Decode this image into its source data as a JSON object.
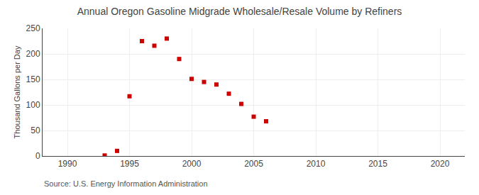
{
  "chart_data": {
    "type": "scatter",
    "title": "Annual Oregon Gasoline Midgrade Wholesale/Resale Volume by Refiners",
    "ylabel": "Thousand Gallons per Day",
    "annotations": [
      "Source: U.S. Energy Information Administration"
    ],
    "x": [
      1993,
      1994,
      1995,
      1996,
      1997,
      1998,
      1999,
      2000,
      2001,
      2002,
      2003,
      2004,
      2005,
      2006
    ],
    "values": [
      1.0,
      10.0,
      117.0,
      225.0,
      216.0,
      230.0,
      190.0,
      151.0,
      145.0,
      140.0,
      122.0,
      102.0,
      77.0,
      68.0
    ],
    "color": "#cc0000",
    "marker": "square",
    "xlim": [
      1988,
      2022
    ],
    "ylim": [
      0,
      250
    ],
    "xticks": [
      1990,
      1995,
      2000,
      2005,
      2010,
      2015,
      2020
    ],
    "yticks": [
      0,
      50,
      100,
      150,
      200,
      250
    ],
    "grid": true
  }
}
